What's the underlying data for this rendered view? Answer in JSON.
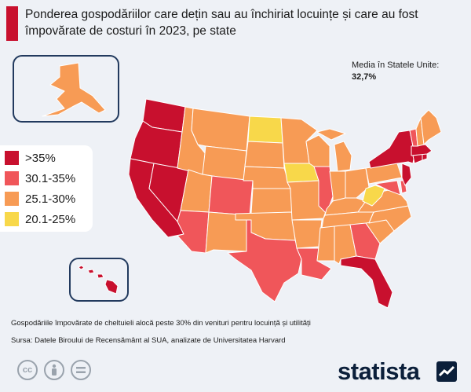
{
  "title": "Ponderea gospodăriilor care dețin sau au închiriat locuințe și care au fost împovărate de costuri în 2023, pe state",
  "median": {
    "label": "Media în Statele Unite:",
    "value": "32,7%"
  },
  "legend": [
    {
      "label": ">35%",
      "color": "#c8102e"
    },
    {
      "label": "30.1-35%",
      "color": "#f0565a"
    },
    {
      "label": "25.1-30%",
      "color": "#f79b55"
    },
    {
      "label": "20.1-25%",
      "color": "#f8d84a"
    }
  ],
  "notes": {
    "definition": "Gospodăriile împovărate de cheltuieli alocă peste 30% din venituri pentru locuință și utilități",
    "source": "Sursa: Datele Biroului de Recensământ al SUA, analizate de Universitatea Harvard"
  },
  "brand": "statista",
  "license_icons": [
    "cc-icon",
    "by-icon",
    "nd-icon"
  ],
  "map_data": {
    "states": [
      {
        "id": "WA",
        "bin": ">35%"
      },
      {
        "id": "OR",
        "bin": ">35%"
      },
      {
        "id": "CA",
        "bin": ">35%"
      },
      {
        "id": "NV",
        "bin": ">35%"
      },
      {
        "id": "FL",
        "bin": ">35%"
      },
      {
        "id": "NY",
        "bin": ">35%"
      },
      {
        "id": "NJ",
        "bin": ">35%"
      },
      {
        "id": "MA",
        "bin": ">35%"
      },
      {
        "id": "CT",
        "bin": ">35%"
      },
      {
        "id": "RI",
        "bin": ">35%"
      },
      {
        "id": "HI",
        "bin": ">35%"
      },
      {
        "id": "AZ",
        "bin": "30.1-35%"
      },
      {
        "id": "CO",
        "bin": "30.1-35%"
      },
      {
        "id": "TX",
        "bin": "30.1-35%"
      },
      {
        "id": "LA",
        "bin": "30.1-35%"
      },
      {
        "id": "GA",
        "bin": "30.1-35%"
      },
      {
        "id": "IL",
        "bin": "30.1-35%"
      },
      {
        "id": "VT",
        "bin": "30.1-35%"
      },
      {
        "id": "MD",
        "bin": "30.1-35%"
      },
      {
        "id": "DE",
        "bin": "30.1-35%"
      },
      {
        "id": "ID",
        "bin": "25.1-30%"
      },
      {
        "id": "MT",
        "bin": "25.1-30%"
      },
      {
        "id": "WY",
        "bin": "25.1-30%"
      },
      {
        "id": "UT",
        "bin": "25.1-30%"
      },
      {
        "id": "NM",
        "bin": "25.1-30%"
      },
      {
        "id": "SD",
        "bin": "25.1-30%"
      },
      {
        "id": "NE",
        "bin": "25.1-30%"
      },
      {
        "id": "KS",
        "bin": "25.1-30%"
      },
      {
        "id": "OK",
        "bin": "25.1-30%"
      },
      {
        "id": "MN",
        "bin": "25.1-30%"
      },
      {
        "id": "MO",
        "bin": "25.1-30%"
      },
      {
        "id": "AR",
        "bin": "25.1-30%"
      },
      {
        "id": "WI",
        "bin": "25.1-30%"
      },
      {
        "id": "MI",
        "bin": "25.1-30%"
      },
      {
        "id": "IN",
        "bin": "25.1-30%"
      },
      {
        "id": "OH",
        "bin": "25.1-30%"
      },
      {
        "id": "KY",
        "bin": "25.1-30%"
      },
      {
        "id": "TN",
        "bin": "25.1-30%"
      },
      {
        "id": "MS",
        "bin": "25.1-30%"
      },
      {
        "id": "AL",
        "bin": "25.1-30%"
      },
      {
        "id": "SC",
        "bin": "25.1-30%"
      },
      {
        "id": "NC",
        "bin": "25.1-30%"
      },
      {
        "id": "VA",
        "bin": "25.1-30%"
      },
      {
        "id": "PA",
        "bin": "25.1-30%"
      },
      {
        "id": "ME",
        "bin": "25.1-30%"
      },
      {
        "id": "NH",
        "bin": "25.1-30%"
      },
      {
        "id": "AK",
        "bin": "25.1-30%"
      },
      {
        "id": "ND",
        "bin": "20.1-25%"
      },
      {
        "id": "IA",
        "bin": "20.1-25%"
      },
      {
        "id": "WV",
        "bin": "20.1-25%"
      }
    ]
  }
}
